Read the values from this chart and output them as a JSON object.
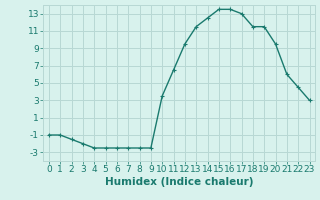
{
  "x": [
    0,
    1,
    2,
    3,
    4,
    5,
    6,
    7,
    8,
    9,
    10,
    11,
    12,
    13,
    14,
    15,
    16,
    17,
    18,
    19,
    20,
    21,
    22,
    23
  ],
  "y": [
    -1,
    -1,
    -1.5,
    -2,
    -2.5,
    -2.5,
    -2.5,
    -2.5,
    -2.5,
    -2.5,
    3.5,
    6.5,
    9.5,
    11.5,
    12.5,
    13.5,
    13.5,
    13,
    11.5,
    11.5,
    9.5,
    6,
    4.5,
    3
  ],
  "line_color": "#1a7a6e",
  "marker": "+",
  "marker_size": 3,
  "bg_color": "#d8f2ed",
  "grid_color": "#b8d8d4",
  "xlabel": "Humidex (Indice chaleur)",
  "xlabel_fontsize": 7.5,
  "xlim": [
    -0.5,
    23.5
  ],
  "ylim": [
    -4,
    14
  ],
  "yticks": [
    -3,
    -1,
    1,
    3,
    5,
    7,
    9,
    11,
    13
  ],
  "xticks": [
    0,
    1,
    2,
    3,
    4,
    5,
    6,
    7,
    8,
    9,
    10,
    11,
    12,
    13,
    14,
    15,
    16,
    17,
    18,
    19,
    20,
    21,
    22,
    23
  ],
  "tick_label_fontsize": 6.5,
  "line_width": 1.0,
  "title": ""
}
